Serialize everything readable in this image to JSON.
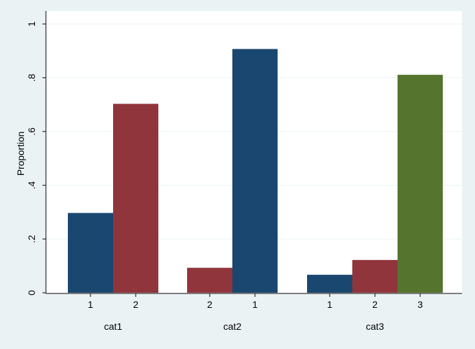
{
  "colors": {
    "outer_background": "#eaf2f3",
    "plot_background": "#ffffff",
    "gridline": "#eaf2f3",
    "axis": "#000000"
  },
  "chart_data": {
    "type": "bar",
    "title": "",
    "xlabel": "",
    "ylabel": "Proportion",
    "ylim": [
      0,
      1
    ],
    "y_ticks": [
      0,
      0.2,
      0.4,
      0.6,
      0.8,
      1
    ],
    "y_tick_labels": [
      "0",
      ".2",
      ".4",
      ".6",
      ".8",
      "1"
    ],
    "grid": true,
    "legend": "none",
    "groups": [
      {
        "name": "cat1",
        "bars": [
          {
            "label": "1",
            "value": 0.297,
            "color": "#1a476f"
          },
          {
            "label": "2",
            "value": 0.703,
            "color": "#90353b"
          }
        ]
      },
      {
        "name": "cat2",
        "bars": [
          {
            "label": "2",
            "value": 0.093,
            "color": "#90353b"
          },
          {
            "label": "1",
            "value": 0.907,
            "color": "#1a476f"
          }
        ]
      },
      {
        "name": "cat3",
        "bars": [
          {
            "label": "1",
            "value": 0.067,
            "color": "#1a476f"
          },
          {
            "label": "2",
            "value": 0.122,
            "color": "#90353b"
          },
          {
            "label": "3",
            "value": 0.811,
            "color": "#55752f"
          }
        ]
      }
    ]
  }
}
